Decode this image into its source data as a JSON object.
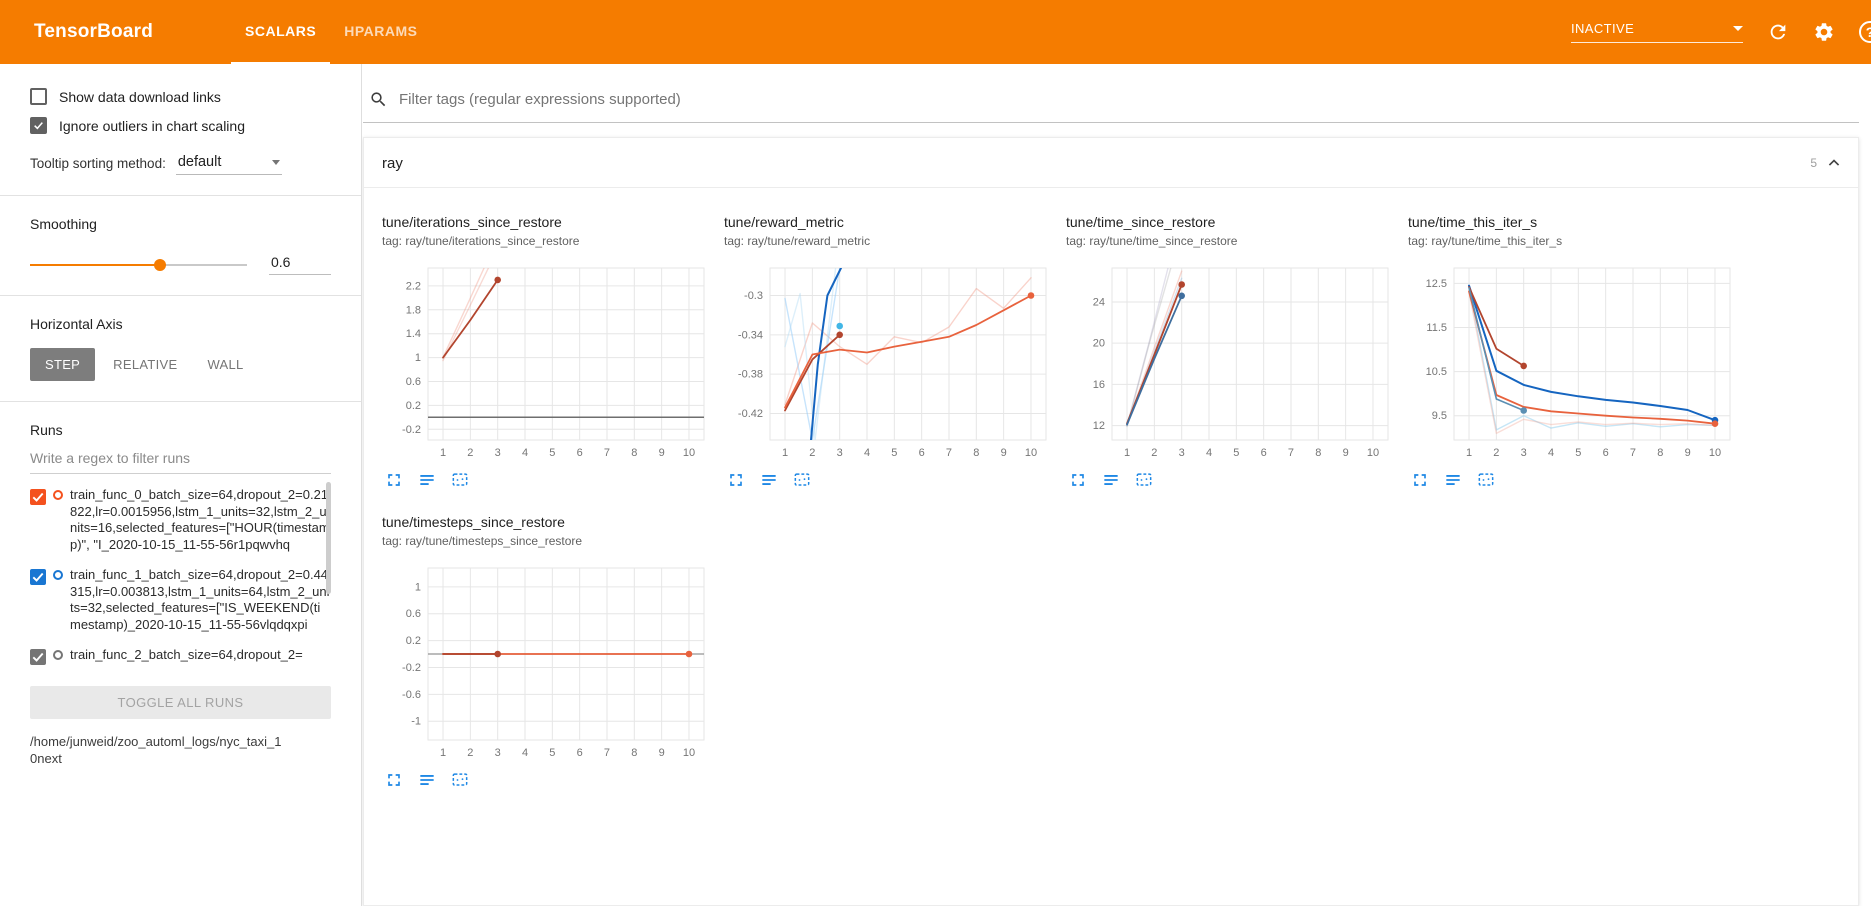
{
  "theme": {
    "accent": "#f57c00",
    "icon_blue": "#1e88e5"
  },
  "header": {
    "title": "TensorBoard",
    "tabs": [
      {
        "label": "SCALARS"
      },
      {
        "label": "HPARAMS"
      }
    ],
    "active_tab": "SCALARS",
    "status_dropdown": "INACTIVE"
  },
  "sidebar": {
    "show_download_links": {
      "label": "Show data download links",
      "checked": false
    },
    "ignore_outliers": {
      "label": "Ignore outliers in chart scaling",
      "checked": true
    },
    "tooltip_sorting": {
      "label": "Tooltip sorting method:",
      "value": "default"
    },
    "smoothing": {
      "label": "Smoothing",
      "value": "0.6"
    },
    "horizontal_axis": {
      "label": "Horizontal Axis",
      "options": [
        {
          "label": "STEP"
        },
        {
          "label": "RELATIVE"
        },
        {
          "label": "WALL"
        }
      ],
      "selected": "STEP"
    },
    "runs": {
      "label": "Runs",
      "filter_placeholder": "Write a regex to filter runs",
      "items": [
        {
          "label": "train_func_0_batch_size=64,dropout_2=0.21822,lr=0.0015956,lstm_1_units=32,lstm_2_units=16,selected_features=[\"HOUR(timestamp)\", \"I_2020-10-15_11-55-56r1pqwvhq",
          "checked": true,
          "color": "#f4511e"
        },
        {
          "label": "train_func_1_batch_size=64,dropout_2=0.44315,lr=0.003813,lstm_1_units=64,lstm_2_units=32,selected_features=[\"IS_WEEKEND(timestamp)_2020-10-15_11-55-56vlqdqxpi",
          "checked": true,
          "color": "#1976d2"
        },
        {
          "label": "train_func_2_batch_size=64,dropout_2=",
          "checked": true,
          "color": "#757575"
        }
      ],
      "toggle_all_label": "TOGGLE ALL RUNS",
      "logdir": "/home/junweid/zoo_automl_logs/nyc_taxi_10next"
    }
  },
  "main": {
    "filter_placeholder": "Filter tags (regular expressions supported)",
    "section": {
      "title": "ray",
      "count": "5"
    }
  },
  "chart_data": [
    {
      "type": "line",
      "title": "tune/iterations_since_restore",
      "tag": "tag: ray/tune/iterations_since_restore",
      "xlim": [
        0.45,
        10.55
      ],
      "ylim": [
        -0.38,
        2.5
      ],
      "xticks": [
        1,
        2,
        3,
        4,
        5,
        6,
        7,
        8,
        9,
        10
      ],
      "yticks": [
        -0.2,
        0.2,
        0.6,
        1,
        1.4,
        1.8,
        2.2
      ],
      "series": [
        {
          "name": "train_func_2",
          "color": "#6e6e6e",
          "opacity": 1,
          "width": 1.5,
          "points": [
            [
              0.45,
              0
            ],
            [
              10.55,
              0
            ]
          ]
        },
        {
          "name": "train_func_0 raw",
          "color": "#ef9a8a",
          "opacity": 0.4,
          "width": 1.4,
          "points": [
            [
              1,
              1
            ],
            [
              2,
              2
            ],
            [
              3,
              3
            ]
          ]
        },
        {
          "name": "train_func_1 raw",
          "color": "#e8836f",
          "opacity": 0.3,
          "width": 1.4,
          "points": [
            [
              1,
              0.95
            ],
            [
              2,
              1.88
            ],
            [
              3,
              2.82
            ]
          ]
        },
        {
          "name": "train_func_0 smoothed",
          "color": "#b2452e",
          "opacity": 1,
          "width": 1.8,
          "points": [
            [
              1,
              1
            ],
            [
              2,
              1.63
            ],
            [
              3,
              2.3
            ]
          ],
          "dots": [
            [
              3,
              2.3
            ]
          ]
        }
      ]
    },
    {
      "type": "line",
      "title": "tune/reward_metric",
      "tag": "tag: ray/tune/reward_metric",
      "xlim": [
        0.45,
        10.55
      ],
      "ylim": [
        -0.447,
        -0.272
      ],
      "xticks": [
        1,
        2,
        3,
        4,
        5,
        6,
        7,
        8,
        9,
        10
      ],
      "yticks": [
        -0.42,
        -0.38,
        -0.34,
        -0.3
      ],
      "series": [
        {
          "name": "orange raw",
          "color": "#f0907c",
          "opacity": 0.4,
          "width": 1.4,
          "points": [
            [
              1,
              -0.411
            ],
            [
              2,
              -0.328
            ],
            [
              3,
              -0.352
            ],
            [
              4,
              -0.37
            ],
            [
              5,
              -0.342
            ],
            [
              6,
              -0.348
            ],
            [
              7,
              -0.332
            ],
            [
              8,
              -0.293
            ],
            [
              9,
              -0.313
            ],
            [
              10,
              -0.282
            ]
          ]
        },
        {
          "name": "blue raw a",
          "color": "#90caf9",
          "opacity": 0.5,
          "width": 1.4,
          "points": [
            [
              1,
              -0.303
            ],
            [
              2,
              -0.447
            ],
            [
              3,
              -0.272
            ]
          ]
        },
        {
          "name": "blue raw b",
          "color": "#b3dcf5",
          "opacity": 0.45,
          "width": 1.4,
          "points": [
            [
              1,
              -0.352
            ],
            [
              1.55,
              -0.298
            ],
            [
              2.1,
              -0.447
            ],
            [
              2.85,
              -0.272
            ]
          ]
        },
        {
          "name": "blue smoothed",
          "color": "#1565c0",
          "opacity": 1,
          "width": 2,
          "points": [
            [
              1.95,
              -0.447
            ],
            [
              2.2,
              -0.37
            ],
            [
              2.55,
              -0.3
            ],
            [
              3.05,
              -0.272
            ]
          ]
        },
        {
          "name": "cyan endpoint",
          "color": "#41b6e6",
          "opacity": 1,
          "width": 0,
          "points": [],
          "dots": [
            [
              3,
              -0.331
            ]
          ]
        },
        {
          "name": "dark red smoothed",
          "color": "#b2452e",
          "opacity": 1,
          "width": 1.8,
          "points": [
            [
              1,
              -0.417
            ],
            [
              2,
              -0.365
            ],
            [
              3,
              -0.34
            ]
          ],
          "dots": [
            [
              3,
              -0.34
            ]
          ]
        },
        {
          "name": "orange smoothed",
          "color": "#e8623d",
          "opacity": 1,
          "width": 1.8,
          "points": [
            [
              1,
              -0.414
            ],
            [
              2,
              -0.36
            ],
            [
              3,
              -0.355
            ],
            [
              4,
              -0.358
            ],
            [
              5,
              -0.352
            ],
            [
              6,
              -0.347
            ],
            [
              7,
              -0.342
            ],
            [
              8,
              -0.33
            ],
            [
              9,
              -0.315
            ],
            [
              10,
              -0.3
            ]
          ],
          "dots": [
            [
              10,
              -0.3
            ]
          ]
        }
      ]
    },
    {
      "type": "line",
      "title": "tune/time_since_restore",
      "tag": "tag: ray/tune/time_since_restore",
      "xlim": [
        0.45,
        10.55
      ],
      "ylim": [
        10.6,
        27.3
      ],
      "xticks": [
        1,
        2,
        3,
        4,
        5,
        6,
        7,
        8,
        9,
        10
      ],
      "yticks": [
        12,
        16,
        20,
        24
      ],
      "series": [
        {
          "name": "raw lavender",
          "color": "#b0a8c8",
          "opacity": 0.35,
          "width": 1.4,
          "points": [
            [
              1,
              12.0
            ],
            [
              1.8,
              20.0
            ],
            [
              2.5,
              27.3
            ]
          ]
        },
        {
          "name": "raw gray",
          "color": "#9e9e9e",
          "opacity": 0.3,
          "width": 1.4,
          "points": [
            [
              1,
              11.9
            ],
            [
              1.9,
              20.8
            ],
            [
              2.6,
              27.3
            ]
          ]
        },
        {
          "name": "raw pink",
          "color": "#ef9a8a",
          "opacity": 0.4,
          "width": 1.4,
          "points": [
            [
              1,
              12.1
            ],
            [
              2,
              19.6
            ],
            [
              3,
              27.0
            ]
          ]
        },
        {
          "name": "raw blue",
          "color": "#90b6dc",
          "opacity": 0.4,
          "width": 1.4,
          "points": [
            [
              1,
              12.0
            ],
            [
              2,
              19.2
            ],
            [
              3,
              26.3
            ]
          ]
        },
        {
          "name": "dark red smoothed",
          "color": "#b2452e",
          "opacity": 1,
          "width": 1.8,
          "points": [
            [
              1,
              12.2
            ],
            [
              2,
              18.9
            ],
            [
              3,
              25.7
            ]
          ],
          "dots": [
            [
              3,
              25.7
            ]
          ]
        },
        {
          "name": "blue smoothed",
          "color": "#3f6e9e",
          "opacity": 1,
          "width": 1.8,
          "points": [
            [
              1,
              12.1
            ],
            [
              2,
              18.5
            ],
            [
              3,
              24.6
            ]
          ],
          "dots": [
            [
              3,
              24.6
            ]
          ]
        }
      ]
    },
    {
      "type": "line",
      "title": "tune/time_this_iter_s",
      "tag": "tag: ray/tune/time_this_iter_s",
      "xlim": [
        0.45,
        10.55
      ],
      "ylim": [
        8.95,
        12.85
      ],
      "xticks": [
        1,
        2,
        3,
        4,
        5,
        6,
        7,
        8,
        9,
        10
      ],
      "yticks": [
        9.5,
        10.5,
        11.5,
        12.5
      ],
      "series": [
        {
          "name": "light blue raw",
          "color": "#81c7ea",
          "opacity": 0.45,
          "width": 1.4,
          "points": [
            [
              1,
              12.42
            ],
            [
              2,
              9.18
            ],
            [
              3,
              9.5
            ],
            [
              4,
              9.22
            ],
            [
              5,
              9.34
            ],
            [
              6,
              9.26
            ],
            [
              7,
              9.32
            ],
            [
              8,
              9.25
            ],
            [
              9,
              9.3
            ],
            [
              10,
              9.28
            ]
          ]
        },
        {
          "name": "light pink raw",
          "color": "#f2a08e",
          "opacity": 0.35,
          "width": 1.4,
          "points": [
            [
              1,
              12.3
            ],
            [
              2,
              9.1
            ],
            [
              3,
              9.42
            ],
            [
              4,
              9.3
            ],
            [
              5,
              9.36
            ],
            [
              6,
              9.3
            ],
            [
              7,
              9.33
            ],
            [
              8,
              9.3
            ],
            [
              9,
              9.32
            ],
            [
              10,
              9.28
            ]
          ]
        },
        {
          "name": "blue smoothed",
          "color": "#1565c0",
          "opacity": 1,
          "width": 2,
          "points": [
            [
              1,
              12.45
            ],
            [
              2,
              10.52
            ],
            [
              3,
              10.2
            ],
            [
              4,
              10.04
            ],
            [
              5,
              9.94
            ],
            [
              6,
              9.86
            ],
            [
              7,
              9.8
            ],
            [
              8,
              9.72
            ],
            [
              9,
              9.63
            ],
            [
              10,
              9.4
            ]
          ],
          "dots": [
            [
              10,
              9.4
            ]
          ]
        },
        {
          "name": "orange smoothed",
          "color": "#e8623d",
          "opacity": 1,
          "width": 1.8,
          "points": [
            [
              1,
              12.32
            ],
            [
              2,
              9.97
            ],
            [
              3,
              9.7
            ],
            [
              4,
              9.6
            ],
            [
              5,
              9.55
            ],
            [
              6,
              9.5
            ],
            [
              7,
              9.46
            ],
            [
              8,
              9.43
            ],
            [
              9,
              9.39
            ],
            [
              10,
              9.32
            ]
          ],
          "dots": [
            [
              10,
              9.32
            ]
          ]
        },
        {
          "name": "dark red smoothed",
          "color": "#b2452e",
          "opacity": 1,
          "width": 1.8,
          "points": [
            [
              1,
              12.42
            ],
            [
              2,
              11.02
            ],
            [
              3,
              10.63
            ]
          ],
          "dots": [
            [
              3,
              10.63
            ]
          ]
        },
        {
          "name": "steel smoothed",
          "color": "#5b8fb3",
          "opacity": 1,
          "width": 1.6,
          "points": [
            [
              1,
              12.4
            ],
            [
              2,
              9.88
            ],
            [
              3,
              9.62
            ]
          ],
          "dots": [
            [
              3,
              9.62
            ]
          ]
        }
      ]
    },
    {
      "type": "line",
      "title": "tune/timesteps_since_restore",
      "tag": "tag: ray/tune/timesteps_since_restore",
      "xlim": [
        0.45,
        10.55
      ],
      "ylim": [
        -1.28,
        1.28
      ],
      "xticks": [
        1,
        2,
        3,
        4,
        5,
        6,
        7,
        8,
        9,
        10
      ],
      "yticks": [
        -1,
        -0.6,
        -0.2,
        0.2,
        0.6,
        1
      ],
      "series": [
        {
          "name": "train_func_2",
          "color": "#8a8a8a",
          "opacity": 0.9,
          "width": 1.3,
          "points": [
            [
              0.45,
              0
            ],
            [
              10.55,
              0
            ]
          ]
        },
        {
          "name": "orange smoothed",
          "color": "#e8623d",
          "opacity": 1,
          "width": 1.8,
          "points": [
            [
              1,
              0
            ],
            [
              10,
              0
            ]
          ],
          "dots": [
            [
              10,
              0
            ]
          ]
        },
        {
          "name": "dark red smoothed",
          "color": "#b2452e",
          "opacity": 1,
          "width": 1.8,
          "points": [
            [
              1,
              0
            ],
            [
              3,
              0
            ]
          ],
          "dots": [
            [
              3,
              0
            ]
          ]
        }
      ]
    }
  ]
}
